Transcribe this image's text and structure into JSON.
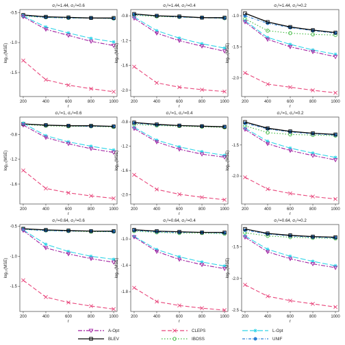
{
  "colors": {
    "A-Opt": "#a01fa0",
    "BLEV": "#000000",
    "CLEPS": "#e8457a",
    "IBOSS": "#3cb83c",
    "L-Opt": "#2ed4e8",
    "UNIF": "#2a7fd4",
    "panel_border": "#555555"
  },
  "chart_data": [
    {
      "type": "line",
      "title": "σ₁²=1.44, σ₂²=0.6",
      "xlabel": "r",
      "ylabel": "log₁₀(MSE)",
      "x": [
        200,
        400,
        600,
        800,
        1000
      ],
      "xlim": [
        170,
        1030
      ],
      "ylim": [
        -1.9,
        -0.45
      ],
      "xticks": [
        200,
        400,
        600,
        800,
        1000
      ],
      "yticks": [
        -0.5,
        -1.0,
        -1.5
      ],
      "ytick_labels": [
        "-0.5",
        "-1.0",
        "-1.5"
      ],
      "series": [
        {
          "name": "A-Opt",
          "values": [
            -0.57,
            -0.78,
            -0.88,
            -0.98,
            -1.05
          ]
        },
        {
          "name": "BLEV",
          "values": [
            -0.54,
            -0.57,
            -0.58,
            -0.59,
            -0.59
          ]
        },
        {
          "name": "CLEPS",
          "values": [
            -1.3,
            -1.62,
            -1.71,
            -1.77,
            -1.82
          ]
        },
        {
          "name": "IBOSS",
          "values": [
            -0.56,
            -0.58,
            -0.59,
            -0.59,
            -0.6
          ]
        },
        {
          "name": "L-Opt",
          "values": [
            -0.56,
            -0.74,
            -0.84,
            -0.93,
            -0.99
          ]
        },
        {
          "name": "UNIF",
          "values": [
            -0.55,
            -0.58,
            -0.59,
            -0.59,
            -0.6
          ]
        }
      ]
    },
    {
      "type": "line",
      "title": "σ₁²=1.44, σ₂²=0.4",
      "xlabel": "r",
      "ylabel": "log₁₀(MSE)",
      "x": [
        200,
        400,
        600,
        800,
        1000
      ],
      "xlim": [
        170,
        1030
      ],
      "ylim": [
        -2.1,
        -0.7
      ],
      "xticks": [
        200,
        400,
        600,
        800,
        1000
      ],
      "yticks": [
        -0.8,
        -1.2,
        -1.6,
        -2.0
      ],
      "ytick_labels": [
        "-0.8",
        "-1.2",
        "-1.6",
        "-2.0"
      ],
      "series": [
        {
          "name": "A-Opt",
          "values": [
            -0.84,
            -1.08,
            -1.2,
            -1.29,
            -1.37
          ]
        },
        {
          "name": "BLEV",
          "values": [
            -0.77,
            -0.8,
            -0.81,
            -0.83,
            -0.83
          ]
        },
        {
          "name": "CLEPS",
          "values": [
            -1.62,
            -1.88,
            -1.95,
            -1.99,
            -2.02
          ]
        },
        {
          "name": "IBOSS",
          "values": [
            -0.79,
            -0.81,
            -0.82,
            -0.83,
            -0.84
          ]
        },
        {
          "name": "L-Opt",
          "values": [
            -0.82,
            -1.04,
            -1.16,
            -1.25,
            -1.32
          ]
        },
        {
          "name": "UNIF",
          "values": [
            -0.78,
            -0.8,
            -0.82,
            -0.83,
            -0.84
          ]
        }
      ]
    },
    {
      "type": "line",
      "title": "σ₁²=1.44, σ₂²=0.2",
      "xlabel": "r",
      "ylabel": "log₁₀(MSE)",
      "x": [
        200,
        400,
        600,
        800,
        1000
      ],
      "xlim": [
        170,
        1030
      ],
      "ylim": [
        -2.3,
        -0.9
      ],
      "xticks": [
        200,
        400,
        600,
        800,
        1000
      ],
      "yticks": [
        -1.0,
        -1.5,
        -2.0
      ],
      "ytick_labels": [
        "-1.0",
        "-1.5",
        "-2.0"
      ],
      "series": [
        {
          "name": "A-Opt",
          "values": [
            -1.1,
            -1.38,
            -1.5,
            -1.58,
            -1.66
          ]
        },
        {
          "name": "BLEV",
          "values": [
            -0.96,
            -1.1,
            -1.18,
            -1.23,
            -1.27
          ]
        },
        {
          "name": "CLEPS",
          "values": [
            -1.92,
            -2.1,
            -2.15,
            -2.2,
            -2.24
          ]
        },
        {
          "name": "IBOSS",
          "values": [
            -1.05,
            -1.24,
            -1.28,
            -1.3,
            -1.31
          ]
        },
        {
          "name": "L-Opt",
          "values": [
            -1.08,
            -1.35,
            -1.46,
            -1.55,
            -1.62
          ]
        },
        {
          "name": "UNIF",
          "values": [
            -1.0,
            -1.12,
            -1.19,
            -1.24,
            -1.28
          ]
        }
      ]
    },
    {
      "type": "line",
      "title": "σ₁²=1, σ₂²=0.6",
      "xlabel": "r",
      "ylabel": "log₁₀(MSE)",
      "x": [
        200,
        400,
        600,
        800,
        1000
      ],
      "xlim": [
        170,
        1030
      ],
      "ylim": [
        -1.92,
        -0.52
      ],
      "xticks": [
        200,
        400,
        600,
        800,
        1000
      ],
      "yticks": [
        -0.8,
        -1.2,
        -1.6
      ],
      "ytick_labels": [
        "-0.8",
        "-1.2",
        "-1.6"
      ],
      "series": [
        {
          "name": "A-Opt",
          "values": [
            -0.65,
            -0.85,
            -0.95,
            -1.03,
            -1.09
          ]
        },
        {
          "name": "BLEV",
          "values": [
            -0.63,
            -0.65,
            -0.66,
            -0.66,
            -0.67
          ]
        },
        {
          "name": "CLEPS",
          "values": [
            -1.38,
            -1.67,
            -1.74,
            -1.79,
            -1.83
          ]
        },
        {
          "name": "IBOSS",
          "values": [
            -0.64,
            -0.66,
            -0.67,
            -0.67,
            -0.68
          ]
        },
        {
          "name": "L-Opt",
          "values": [
            -0.62,
            -0.82,
            -0.92,
            -0.99,
            -1.05
          ]
        },
        {
          "name": "UNIF",
          "values": [
            -0.63,
            -0.65,
            -0.66,
            -0.67,
            -0.67
          ]
        }
      ]
    },
    {
      "type": "line",
      "title": "σ₁²=1, σ₂²=0.4",
      "xlabel": "r",
      "ylabel": "log₁₀(MSE)",
      "x": [
        200,
        400,
        600,
        800,
        1000
      ],
      "xlim": [
        170,
        1030
      ],
      "ylim": [
        -2.15,
        -0.72
      ],
      "xticks": [
        200,
        400,
        600,
        800,
        1000
      ],
      "yticks": [
        -0.8,
        -1.2,
        -1.6,
        -2.0
      ],
      "ytick_labels": [
        "-0.8",
        "-1.2",
        "-1.6",
        "-2.0"
      ],
      "series": [
        {
          "name": "A-Opt",
          "values": [
            -0.91,
            -1.13,
            -1.25,
            -1.33,
            -1.38
          ]
        },
        {
          "name": "BLEV",
          "values": [
            -0.81,
            -0.84,
            -0.86,
            -0.87,
            -0.88
          ]
        },
        {
          "name": "CLEPS",
          "values": [
            -1.67,
            -1.91,
            -1.99,
            -2.04,
            -2.08
          ]
        },
        {
          "name": "IBOSS",
          "values": [
            -0.84,
            -0.86,
            -0.87,
            -0.88,
            -0.89
          ]
        },
        {
          "name": "L-Opt",
          "values": [
            -0.89,
            -1.1,
            -1.21,
            -1.29,
            -1.35
          ]
        },
        {
          "name": "UNIF",
          "values": [
            -0.82,
            -0.85,
            -0.86,
            -0.87,
            -0.88
          ]
        }
      ]
    },
    {
      "type": "line",
      "title": "σ₁²=1, σ₂²=0.2",
      "xlabel": "r",
      "ylabel": "log₁₀(MSE)",
      "x": [
        200,
        400,
        600,
        800,
        1000
      ],
      "xlim": [
        170,
        1030
      ],
      "ylim": [
        -2.45,
        -1.05
      ],
      "xticks": [
        200,
        400,
        600,
        800,
        1000
      ],
      "yticks": [
        -1.5,
        -2.0
      ],
      "ytick_labels": [
        "-1.5",
        "-2.0"
      ],
      "series": [
        {
          "name": "A-Opt",
          "values": [
            -1.25,
            -1.48,
            -1.59,
            -1.67,
            -1.74
          ]
        },
        {
          "name": "BLEV",
          "values": [
            -1.13,
            -1.23,
            -1.28,
            -1.31,
            -1.33
          ]
        },
        {
          "name": "CLEPS",
          "values": [
            -2.02,
            -2.21,
            -2.28,
            -2.33,
            -2.37
          ]
        },
        {
          "name": "IBOSS",
          "values": [
            -1.19,
            -1.3,
            -1.33,
            -1.34,
            -1.35
          ]
        },
        {
          "name": "L-Opt",
          "values": [
            -1.23,
            -1.44,
            -1.55,
            -1.63,
            -1.7
          ]
        },
        {
          "name": "UNIF",
          "values": [
            -1.15,
            -1.24,
            -1.29,
            -1.32,
            -1.34
          ]
        }
      ]
    },
    {
      "type": "line",
      "title": "σ₁²=0.64, σ₂²=0.6",
      "xlabel": "r",
      "ylabel": "log₁₀(MSE)",
      "x": [
        200,
        400,
        600,
        800,
        1000
      ],
      "xlim": [
        170,
        1030
      ],
      "ylim": [
        -1.92,
        -0.47
      ],
      "xticks": [
        200,
        400,
        600,
        800,
        1000
      ],
      "yticks": [
        -0.5,
        -1.0,
        -1.5
      ],
      "ytick_labels": [
        "-0.5",
        "-1.0",
        "-1.5"
      ],
      "series": [
        {
          "name": "A-Opt",
          "values": [
            -0.57,
            -0.86,
            -0.96,
            -1.04,
            -1.1
          ]
        },
        {
          "name": "BLEV",
          "values": [
            -0.54,
            -0.56,
            -0.57,
            -0.58,
            -0.58
          ]
        },
        {
          "name": "CLEPS",
          "values": [
            -1.4,
            -1.68,
            -1.77,
            -1.83,
            -1.88
          ]
        },
        {
          "name": "IBOSS",
          "values": [
            -0.55,
            -0.57,
            -0.58,
            -0.59,
            -0.59
          ]
        },
        {
          "name": "L-Opt",
          "values": [
            -0.56,
            -0.8,
            -0.92,
            -1.0,
            -1.05
          ]
        },
        {
          "name": "UNIF",
          "values": [
            -0.55,
            -0.57,
            -0.58,
            -0.58,
            -0.59
          ]
        }
      ]
    },
    {
      "type": "line",
      "title": "σ₁²=0.64, σ₂²=0.4",
      "xlabel": "r",
      "ylabel": "log₁₀(MSE)",
      "x": [
        200,
        400,
        600,
        800,
        1000
      ],
      "xlim": [
        170,
        1030
      ],
      "ylim": [
        -2.1,
        -0.78
      ],
      "xticks": [
        200,
        400,
        600,
        800,
        1000
      ],
      "yticks": [
        -1.0,
        -1.4,
        -1.8
      ],
      "ytick_labels": [
        "-1.0",
        "-1.4",
        "-1.8"
      ],
      "series": [
        {
          "name": "A-Opt",
          "values": [
            -0.97,
            -1.19,
            -1.31,
            -1.39,
            -1.45
          ]
        },
        {
          "name": "BLEV",
          "values": [
            -0.86,
            -0.88,
            -0.89,
            -0.9,
            -0.9
          ]
        },
        {
          "name": "CLEPS",
          "values": [
            -1.74,
            -1.95,
            -2.01,
            -2.05,
            -2.08
          ]
        },
        {
          "name": "IBOSS",
          "values": [
            -0.88,
            -0.9,
            -0.91,
            -0.91,
            -0.92
          ]
        },
        {
          "name": "L-Opt",
          "values": [
            -0.96,
            -1.16,
            -1.27,
            -1.35,
            -1.41
          ]
        },
        {
          "name": "UNIF",
          "values": [
            -0.87,
            -0.89,
            -0.9,
            -0.9,
            -0.91
          ]
        }
      ]
    },
    {
      "type": "line",
      "title": "σ₁²=0.64, σ₂²=0.2",
      "xlabel": "r",
      "ylabel": "log₁₀(MSE)",
      "x": [
        200,
        400,
        600,
        800,
        1000
      ],
      "xlim": [
        170,
        1030
      ],
      "ylim": [
        -2.52,
        -1.15
      ],
      "xticks": [
        200,
        400,
        600,
        800,
        1000
      ],
      "yticks": [
        -1.5,
        -2.0,
        -2.5
      ],
      "ytick_labels": [
        "-1.5",
        "-2.0",
        "-2.5"
      ],
      "series": [
        {
          "name": "A-Opt",
          "values": [
            -1.35,
            -1.58,
            -1.69,
            -1.77,
            -1.83
          ]
        },
        {
          "name": "BLEV",
          "values": [
            -1.22,
            -1.29,
            -1.32,
            -1.34,
            -1.35
          ]
        },
        {
          "name": "CLEPS",
          "values": [
            -2.1,
            -2.28,
            -2.35,
            -2.4,
            -2.45
          ]
        },
        {
          "name": "IBOSS",
          "values": [
            -1.28,
            -1.33,
            -1.35,
            -1.36,
            -1.37
          ]
        },
        {
          "name": "L-Opt",
          "values": [
            -1.33,
            -1.54,
            -1.65,
            -1.73,
            -1.8
          ]
        },
        {
          "name": "UNIF",
          "values": [
            -1.24,
            -1.3,
            -1.33,
            -1.35,
            -1.36
          ]
        }
      ]
    }
  ],
  "legend": {
    "placement": "bottom",
    "items": [
      {
        "name": "A-Opt",
        "marker": "triangle-down",
        "dash": "6,2,2,2"
      },
      {
        "name": "CLEPS",
        "marker": "cross",
        "dash": "6,3"
      },
      {
        "name": "L-Opt",
        "marker": "star",
        "dash": "8,3"
      },
      {
        "name": "BLEV",
        "marker": "square",
        "dash": ""
      },
      {
        "name": "IBOSS",
        "marker": "circle",
        "dash": "1.5,2.5"
      },
      {
        "name": "UNIF",
        "marker": "filled-circle",
        "dash": "4,2,1,2"
      }
    ]
  }
}
